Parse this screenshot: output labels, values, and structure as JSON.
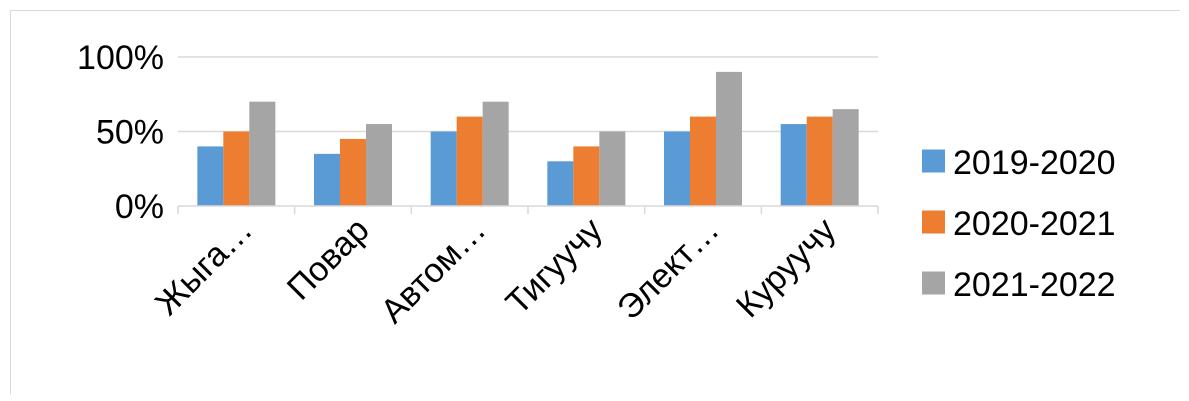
{
  "chart_data": {
    "type": "bar",
    "categories": [
      "Жыга…",
      "Повар",
      "Автом…",
      "Тигуучу",
      "Элект…",
      "Куруучу"
    ],
    "series": [
      {
        "name": "2019-2020",
        "color": "#5b9bd5",
        "values": [
          40,
          35,
          50,
          30,
          50,
          55
        ]
      },
      {
        "name": "2020-2021",
        "color": "#ed7d31",
        "values": [
          50,
          45,
          60,
          40,
          60,
          60
        ]
      },
      {
        "name": "2021-2022",
        "color": "#a5a5a5",
        "values": [
          70,
          55,
          70,
          50,
          90,
          65
        ]
      }
    ],
    "ylim": [
      0,
      100
    ],
    "yticks": [
      {
        "value": 0,
        "label": "0%"
      },
      {
        "value": 50,
        "label": "50%"
      },
      {
        "value": 100,
        "label": "100%"
      }
    ],
    "grid": true,
    "legend_position": "right"
  }
}
